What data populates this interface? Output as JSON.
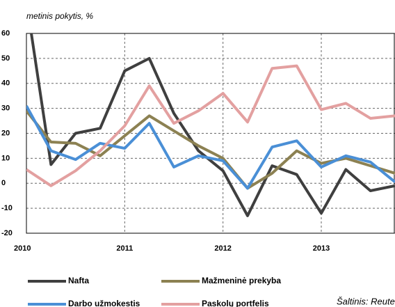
{
  "chart_data": {
    "type": "line",
    "subtitle": "metinis pokytis, %",
    "source": "Šaltinis: Reuters",
    "categories": [
      "2010",
      null,
      null,
      null,
      "2011",
      null,
      null,
      null,
      "2012",
      null,
      null,
      null,
      "2013",
      null,
      null,
      null
    ],
    "series": [
      {
        "name": "Nafta",
        "color": "#3f3f3f",
        "values": [
          73,
          7.5,
          20,
          22,
          45,
          50,
          28,
          13,
          5,
          -13,
          7,
          3.5,
          -12,
          5.5,
          -3,
          -1
        ]
      },
      {
        "name": "Mažmeninė prekyba",
        "color": "#8c8152",
        "values": [
          29,
          16.5,
          16,
          11,
          19,
          27,
          21,
          15,
          10,
          -2,
          4,
          13,
          8,
          10,
          7,
          4
        ]
      },
      {
        "name": "Darbo užmokestis",
        "color": "#4a8fd6",
        "values": [
          31,
          13,
          9.5,
          16,
          14,
          24,
          6.5,
          11,
          9,
          -2,
          14.5,
          17,
          6.5,
          11,
          8.5,
          0.5
        ]
      },
      {
        "name": "Paskolų portfelis",
        "color": "#e3a0a0",
        "values": [
          5.5,
          -1,
          5,
          13,
          23,
          39,
          24,
          29,
          36,
          24.5,
          46,
          47,
          29.5,
          32,
          26,
          27
        ]
      }
    ],
    "ylim": [
      -20,
      60
    ],
    "yticks": [
      -20,
      -10,
      0,
      10,
      20,
      30,
      40,
      50,
      60
    ],
    "grid": true
  }
}
